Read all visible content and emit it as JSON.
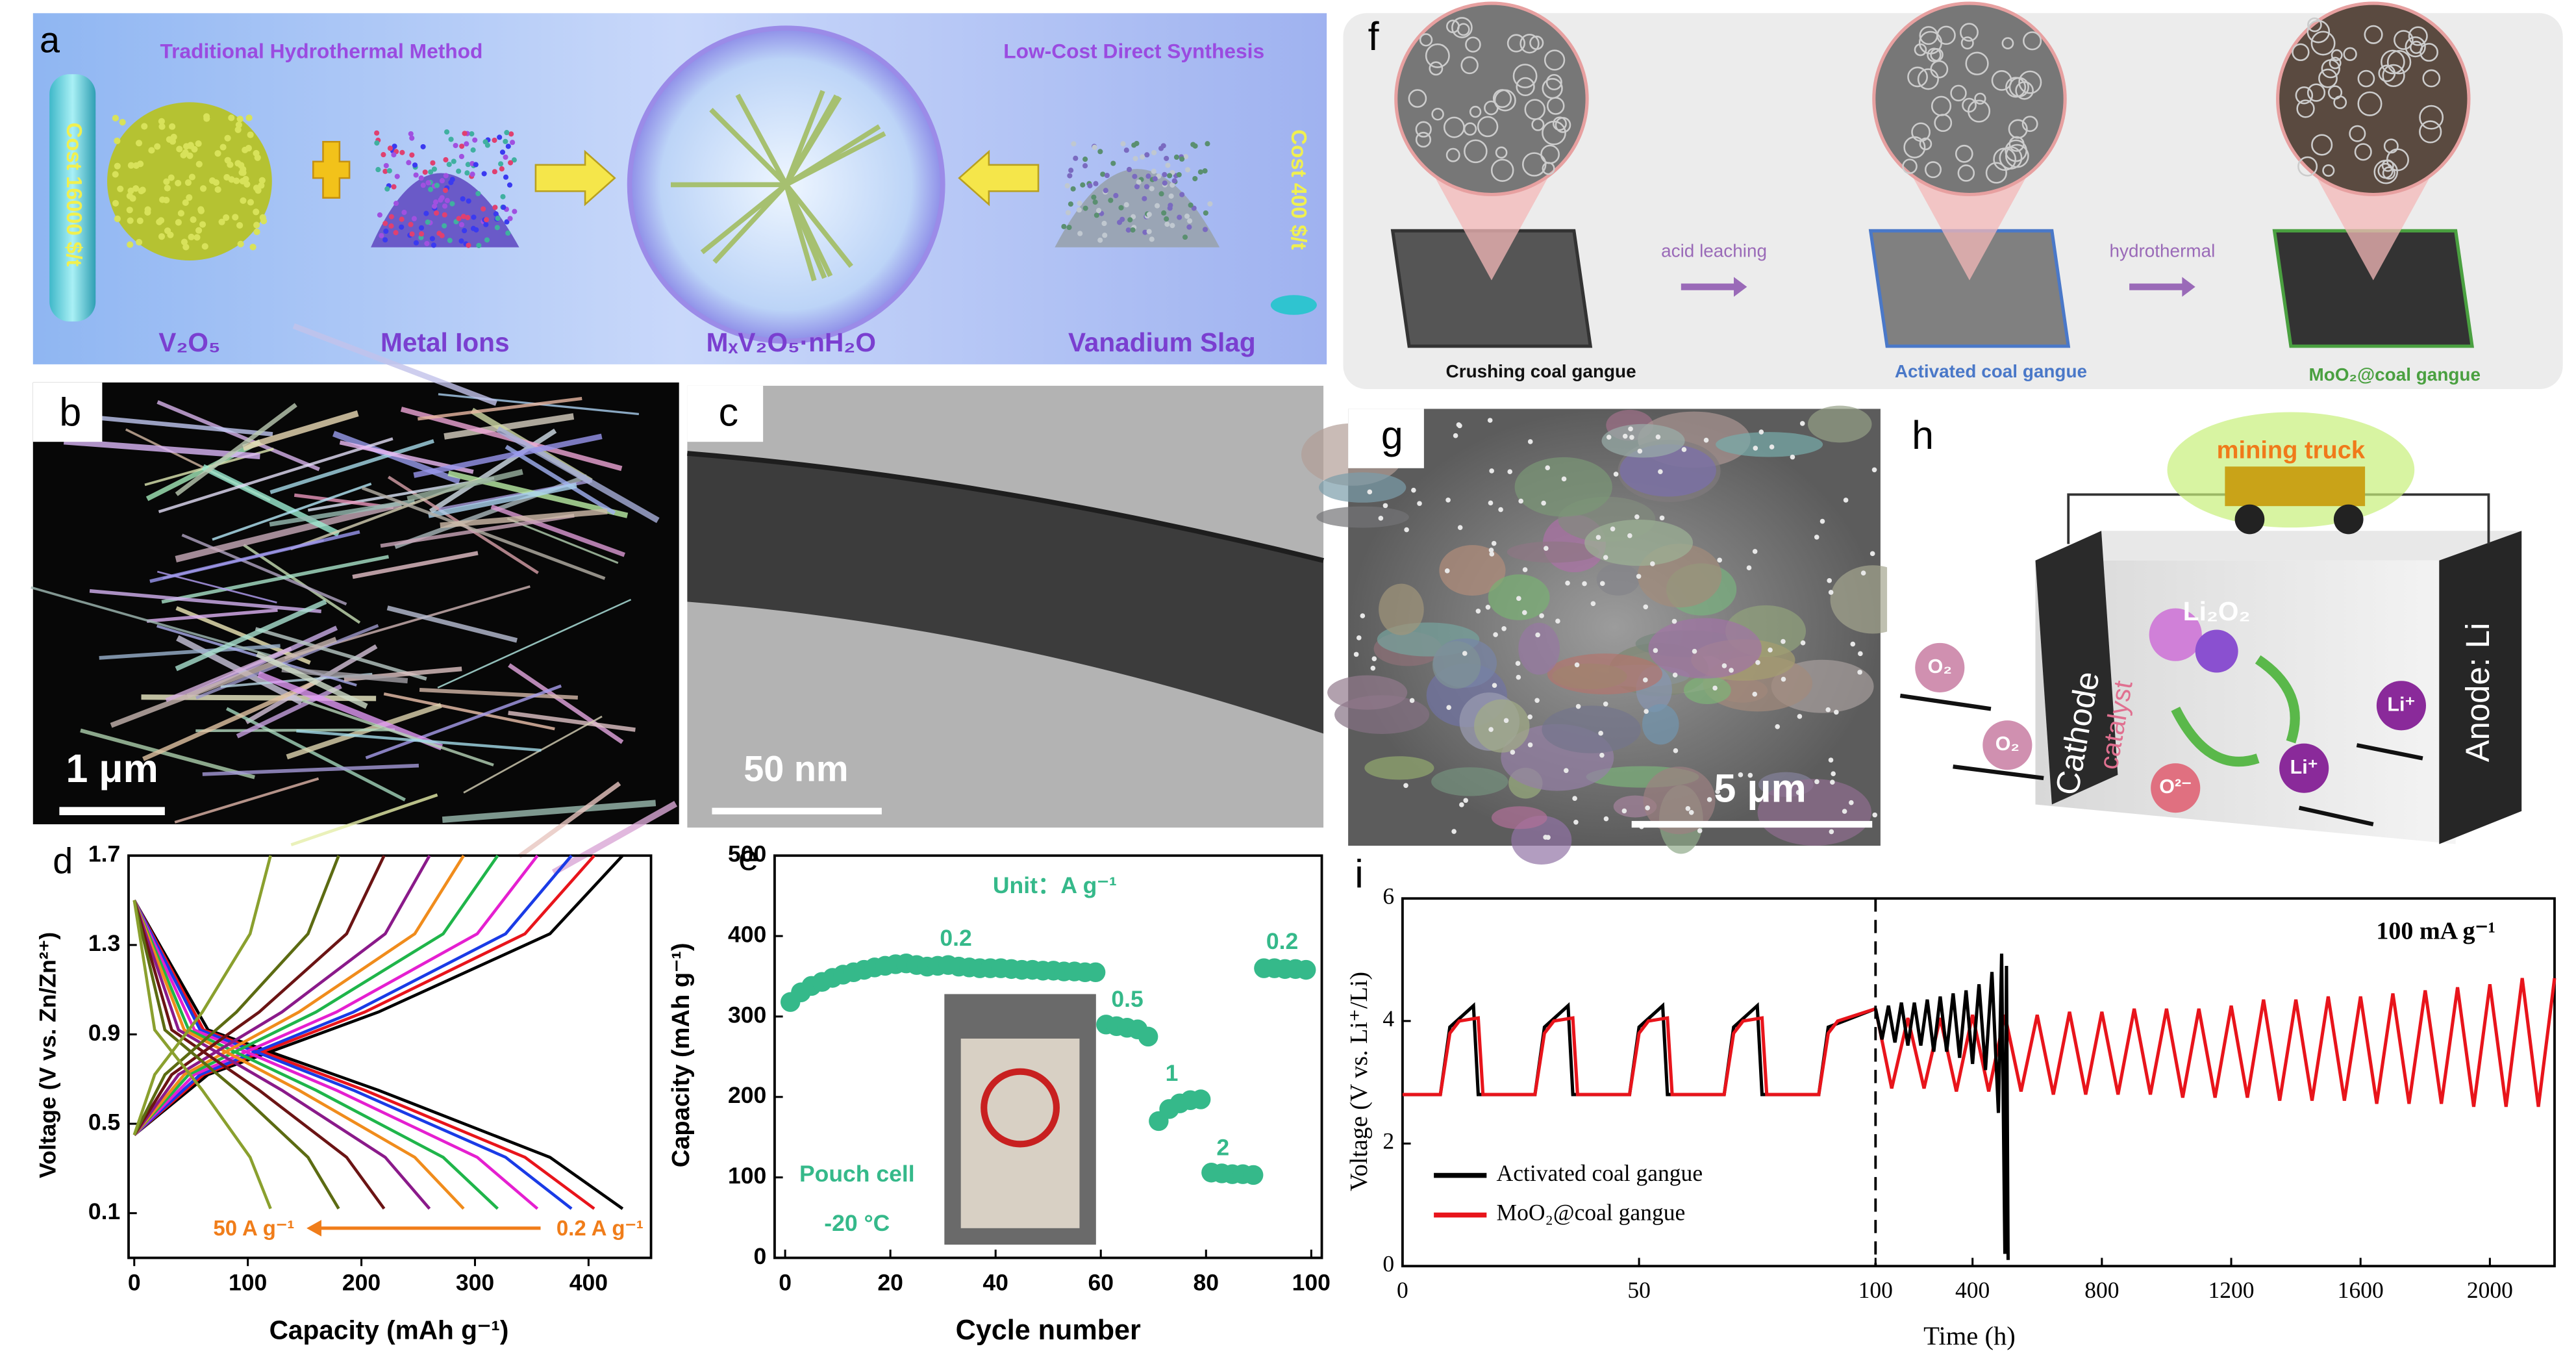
{
  "panels": {
    "a": {
      "label": "a",
      "left_title": "Traditional Hydrothermal Method",
      "right_title": "Low-Cost Direct Synthesis",
      "left_cost": "Cost 16000 $/t",
      "right_cost": "Cost 400 $/t",
      "items": [
        "V₂O₅",
        "Metal Ions",
        "MₓV₂O₅·nH₂O",
        "Vanadium Slag"
      ]
    },
    "b": {
      "label": "b",
      "scale_bar": "1 μm"
    },
    "c": {
      "label": "c",
      "scale_bar": "50 nm"
    },
    "f": {
      "label": "f",
      "steps": [
        "acid leaching",
        "hydrothermal"
      ],
      "stages": [
        "Crushing coal gangue",
        "Activated coal gangue",
        "MoO₂@coal gangue"
      ]
    },
    "g": {
      "label": "g",
      "scale_bar": "5 μm"
    },
    "h": {
      "label": "h",
      "truck": "mining truck",
      "cathode": "Cathode",
      "catalyst": "catalyst",
      "anode": "Anode: Li",
      "product": "Li₂O₂",
      "species": [
        "O₂",
        "O₂",
        "Li⁺",
        "Li⁺",
        "O²⁻"
      ]
    }
  },
  "chart_data": [
    {
      "type": "line",
      "panel": "d",
      "xlabel": "Capacity (mAh g⁻¹)",
      "ylabel": "Voltage (V vs. Zn/Zn²⁺)",
      "xlim": [
        -5,
        455
      ],
      "xticks": [
        0,
        100,
        200,
        300,
        400
      ],
      "ylim": [
        -0.1,
        1.7
      ],
      "yticks": [
        0.1,
        0.5,
        0.9,
        1.3,
        1.7
      ],
      "annotations": [
        "50 A g⁻¹",
        "0.2 A g⁻¹"
      ],
      "annotation_color": "#f07d1a",
      "series": [
        {
          "color": "#000000",
          "x": [
            0,
            65,
            215,
            366,
            430
          ],
          "values": [
            1.5,
            0.92,
            0.65,
            0.35,
            0.12
          ]
        },
        {
          "color": "#000000",
          "x": [
            0,
            65,
            215,
            366,
            430
          ],
          "values": [
            0.45,
            0.72,
            1.0,
            1.35,
            1.7
          ]
        },
        {
          "color": "#e8141b",
          "x": [
            0,
            61,
            203,
            344,
            405
          ],
          "values": [
            1.5,
            0.92,
            0.65,
            0.35,
            0.12
          ]
        },
        {
          "color": "#e8141b",
          "x": [
            0,
            61,
            203,
            344,
            405
          ],
          "values": [
            0.45,
            0.72,
            1.0,
            1.35,
            1.7
          ]
        },
        {
          "color": "#1a3be6",
          "x": [
            0,
            58,
            193,
            327,
            385
          ],
          "values": [
            1.5,
            0.92,
            0.65,
            0.35,
            0.12
          ]
        },
        {
          "color": "#1a3be6",
          "x": [
            0,
            58,
            193,
            327,
            385
          ],
          "values": [
            0.45,
            0.72,
            1.0,
            1.35,
            1.7
          ]
        },
        {
          "color": "#e51fd0",
          "x": [
            0,
            53,
            178,
            302,
            355
          ],
          "values": [
            1.5,
            0.92,
            0.65,
            0.35,
            0.12
          ]
        },
        {
          "color": "#e51fd0",
          "x": [
            0,
            53,
            178,
            302,
            355
          ],
          "values": [
            0.45,
            0.72,
            1.0,
            1.35,
            1.7
          ]
        },
        {
          "color": "#1fb54a",
          "x": [
            0,
            48,
            160,
            272,
            320
          ],
          "values": [
            1.5,
            0.92,
            0.65,
            0.35,
            0.12
          ]
        },
        {
          "color": "#1fb54a",
          "x": [
            0,
            48,
            160,
            272,
            320
          ],
          "values": [
            0.45,
            0.72,
            1.0,
            1.35,
            1.7
          ]
        },
        {
          "color": "#f08c1c",
          "x": [
            0,
            44,
            145,
            247,
            290
          ],
          "values": [
            1.5,
            0.92,
            0.65,
            0.35,
            0.12
          ]
        },
        {
          "color": "#f08c1c",
          "x": [
            0,
            44,
            145,
            247,
            290
          ],
          "values": [
            0.45,
            0.72,
            1.0,
            1.35,
            1.7
          ]
        },
        {
          "color": "#8a1a8a",
          "x": [
            0,
            39,
            130,
            221,
            260
          ],
          "values": [
            1.5,
            0.92,
            0.65,
            0.35,
            0.12
          ]
        },
        {
          "color": "#8a1a8a",
          "x": [
            0,
            39,
            130,
            221,
            260
          ],
          "values": [
            0.45,
            0.72,
            1.0,
            1.35,
            1.7
          ]
        },
        {
          "color": "#6b1414",
          "x": [
            0,
            33,
            110,
            187,
            220
          ],
          "values": [
            1.5,
            0.92,
            0.65,
            0.35,
            0.12
          ]
        },
        {
          "color": "#6b1414",
          "x": [
            0,
            33,
            110,
            187,
            220
          ],
          "values": [
            0.45,
            0.72,
            1.0,
            1.35,
            1.7
          ]
        },
        {
          "color": "#5c6b12",
          "x": [
            0,
            27,
            90,
            153,
            180
          ],
          "values": [
            1.5,
            0.92,
            0.65,
            0.35,
            0.12
          ]
        },
        {
          "color": "#5c6b12",
          "x": [
            0,
            27,
            90,
            153,
            180
          ],
          "values": [
            0.45,
            0.72,
            1.0,
            1.35,
            1.7
          ]
        },
        {
          "color": "#8aa02e",
          "x": [
            0,
            18,
            60,
            102,
            120
          ],
          "values": [
            1.5,
            0.92,
            0.65,
            0.35,
            0.12
          ]
        },
        {
          "color": "#8aa02e",
          "x": [
            0,
            18,
            60,
            102,
            120
          ],
          "values": [
            0.45,
            0.72,
            1.0,
            1.35,
            1.7
          ]
        }
      ]
    },
    {
      "type": "scatter",
      "panel": "e",
      "xlabel": "Cycle number",
      "ylabel": "Capacity (mAh g⁻¹)",
      "xlim": [
        -2,
        102
      ],
      "xticks": [
        0,
        20,
        40,
        60,
        80,
        100
      ],
      "ylim": [
        0,
        500
      ],
      "yticks": [
        0,
        100,
        200,
        300,
        400,
        500
      ],
      "color": "#35b98a",
      "x": [
        1,
        3,
        5,
        7,
        9,
        11,
        13,
        15,
        17,
        19,
        21,
        23,
        25,
        27,
        29,
        31,
        33,
        35,
        37,
        39,
        41,
        43,
        45,
        47,
        49,
        51,
        53,
        55,
        57,
        59,
        61,
        63,
        65,
        67,
        69,
        71,
        73,
        75,
        77,
        79,
        81,
        83,
        85,
        87,
        89,
        91,
        93,
        95,
        97,
        99
      ],
      "values": [
        318,
        330,
        338,
        343,
        348,
        352,
        355,
        358,
        361,
        363,
        365,
        366,
        364,
        362,
        363,
        364,
        362,
        361,
        360,
        360,
        360,
        359,
        358,
        358,
        357,
        357,
        356,
        356,
        355,
        355,
        290,
        288,
        286,
        284,
        275,
        170,
        185,
        192,
        196,
        197,
        106,
        105,
        104,
        104,
        103,
        360,
        360,
        359,
        359,
        358
      ],
      "unit": "Unit：A g⁻¹",
      "rates": [
        "0.2",
        "0.5",
        "1",
        "2",
        "0.2"
      ],
      "cell": "Pouch cell",
      "temperature": "-20 °C"
    },
    {
      "type": "line",
      "panel": "i",
      "xlabel": "Time (h)",
      "ylabel": "Voltage (V vs. Li⁺/Li)",
      "ylim": [
        0,
        6
      ],
      "yticks": [
        0,
        2,
        4,
        6
      ],
      "annotation": "100 mA g⁻¹",
      "segments": [
        {
          "xlim": [
            0,
            100
          ],
          "xticks": [
            0,
            50,
            100
          ],
          "series": [
            {
              "name": "Activated coal gangue",
              "color": "#000000",
              "x": [
                0,
                8,
                10,
                15,
                16,
                28,
                30,
                35,
                36,
                48,
                50,
                55,
                56,
                68,
                70,
                75,
                76,
                88,
                90,
                100
              ],
              "values": [
                2.8,
                2.8,
                3.9,
                4.25,
                2.8,
                2.8,
                3.9,
                4.25,
                2.8,
                2.8,
                3.9,
                4.25,
                2.8,
                2.8,
                3.9,
                4.25,
                2.8,
                2.8,
                3.9,
                4.2
              ]
            },
            {
              "name": "MoO₂@coal gangue",
              "color": "#e8141b",
              "x": [
                0,
                8,
                10,
                12,
                16,
                17,
                28,
                30,
                32,
                36,
                37,
                48,
                50,
                52,
                56,
                57,
                68,
                70,
                72,
                76,
                77,
                88,
                90,
                92,
                100
              ],
              "values": [
                2.8,
                2.8,
                3.8,
                4.0,
                4.05,
                2.8,
                2.8,
                3.8,
                4.0,
                4.05,
                2.8,
                2.8,
                3.8,
                4.0,
                4.05,
                2.8,
                2.8,
                3.8,
                4.0,
                4.05,
                2.8,
                2.8,
                3.8,
                4.0,
                4.2
              ]
            }
          ]
        },
        {
          "xlim": [
            100,
            2200
          ],
          "xticks": [
            400,
            800,
            1200,
            1600,
            2000
          ],
          "series": [
            {
              "color": "#e8141b",
              "x": [
                100,
                150,
                200,
                250,
                300,
                350,
                400,
                450,
                500,
                550,
                600,
                650,
                700,
                750,
                800,
                850,
                900,
                950,
                1000,
                1050,
                1100,
                1150,
                1200,
                1250,
                1300,
                1350,
                1400,
                1450,
                1500,
                1550,
                1600,
                1650,
                1700,
                1750,
                1800,
                1850,
                1900,
                1950,
                2000,
                2050,
                2100,
                2150,
                2200
              ],
              "values": [
                4.2,
                2.9,
                4.05,
                2.9,
                4.05,
                2.85,
                4.1,
                2.85,
                4.1,
                2.85,
                4.1,
                2.8,
                4.15,
                2.8,
                4.15,
                2.8,
                4.2,
                2.8,
                4.2,
                2.75,
                4.2,
                2.75,
                4.25,
                2.75,
                4.35,
                2.7,
                4.35,
                2.7,
                4.4,
                2.7,
                4.4,
                2.65,
                4.45,
                2.65,
                4.5,
                2.65,
                4.55,
                2.6,
                4.6,
                2.6,
                4.7,
                2.6,
                4.7
              ]
            },
            {
              "color": "#000000",
              "x": [
                100,
                120,
                140,
                160,
                180,
                200,
                220,
                240,
                260,
                280,
                300,
                320,
                340,
                360,
                380,
                400,
                420,
                440,
                460,
                480,
                490,
                500,
                505,
                510
              ],
              "values": [
                4.2,
                3.7,
                4.25,
                3.65,
                4.3,
                3.6,
                4.3,
                3.6,
                4.35,
                3.5,
                4.4,
                3.5,
                4.45,
                3.4,
                4.5,
                3.3,
                4.6,
                3.2,
                4.8,
                2.5,
                5.1,
                0.2,
                4.9,
                0.1
              ]
            }
          ]
        }
      ]
    }
  ]
}
